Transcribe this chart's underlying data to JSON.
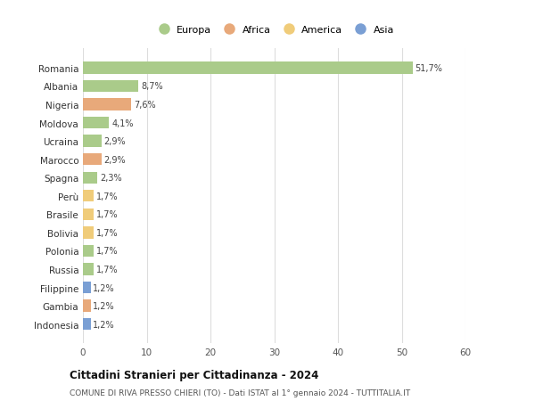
{
  "categories": [
    "Romania",
    "Albania",
    "Nigeria",
    "Moldova",
    "Ucraina",
    "Marocco",
    "Spagna",
    "Perù",
    "Brasile",
    "Bolivia",
    "Polonia",
    "Russia",
    "Filippine",
    "Gambia",
    "Indonesia"
  ],
  "values": [
    51.7,
    8.7,
    7.6,
    4.1,
    2.9,
    2.9,
    2.3,
    1.7,
    1.7,
    1.7,
    1.7,
    1.7,
    1.2,
    1.2,
    1.2
  ],
  "labels": [
    "51,7%",
    "8,7%",
    "7,6%",
    "4,1%",
    "2,9%",
    "2,9%",
    "2,3%",
    "1,7%",
    "1,7%",
    "1,7%",
    "1,7%",
    "1,7%",
    "1,2%",
    "1,2%",
    "1,2%"
  ],
  "continents": [
    "Europa",
    "Europa",
    "Africa",
    "Europa",
    "Europa",
    "Africa",
    "Europa",
    "America",
    "America",
    "America",
    "Europa",
    "Europa",
    "Asia",
    "Africa",
    "Asia"
  ],
  "colors": {
    "Europa": "#aacb8a",
    "Africa": "#e8a97a",
    "America": "#f0cc7a",
    "Asia": "#7a9fd4"
  },
  "xlim": [
    0,
    60
  ],
  "xticks": [
    0,
    10,
    20,
    30,
    40,
    50,
    60
  ],
  "title": "Cittadini Stranieri per Cittadinanza - 2024",
  "subtitle": "COMUNE DI RIVA PRESSO CHIERI (TO) - Dati ISTAT al 1° gennaio 2024 - TUTTITALIA.IT",
  "background_color": "#ffffff",
  "grid_color": "#dddddd",
  "legend_order": [
    "Europa",
    "Africa",
    "America",
    "Asia"
  ]
}
